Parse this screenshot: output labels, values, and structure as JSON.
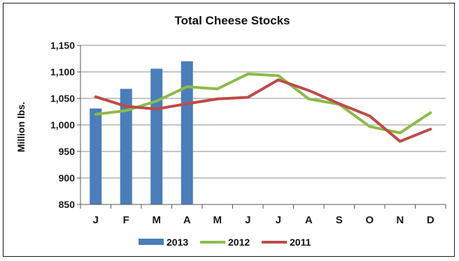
{
  "chart_data": {
    "type": "bar+line",
    "title": "Total Cheese Stocks",
    "xlabel": "",
    "ylabel": "Million lbs.",
    "categories": [
      "J",
      "F",
      "M",
      "A",
      "M",
      "J",
      "J",
      "A",
      "S",
      "O",
      "N",
      "D"
    ],
    "ylim": [
      850,
      1150
    ],
    "yticks": [
      850,
      900,
      950,
      1000,
      1050,
      1100,
      1150
    ],
    "ytick_labels": [
      "850",
      "900",
      "950",
      "1,000",
      "1,050",
      "1,100",
      "1,150"
    ],
    "grid": "horizontal",
    "legend_position": "bottom",
    "series": [
      {
        "name": "2013",
        "kind": "bar",
        "color": "#4a7ebb",
        "values": [
          1031,
          1068,
          1106,
          1120,
          null,
          null,
          null,
          null,
          null,
          null,
          null,
          null
        ]
      },
      {
        "name": "2012",
        "kind": "line",
        "color": "#8dbb48",
        "values": [
          1020,
          1027,
          1045,
          1072,
          1068,
          1096,
          1093,
          1049,
          1039,
          997,
          985,
          1023
        ]
      },
      {
        "name": "2011",
        "kind": "line",
        "color": "#be4b48",
        "values": [
          1053,
          1035,
          1030,
          1040,
          1049,
          1052,
          1085,
          1065,
          1040,
          1017,
          969,
          992
        ]
      }
    ]
  }
}
